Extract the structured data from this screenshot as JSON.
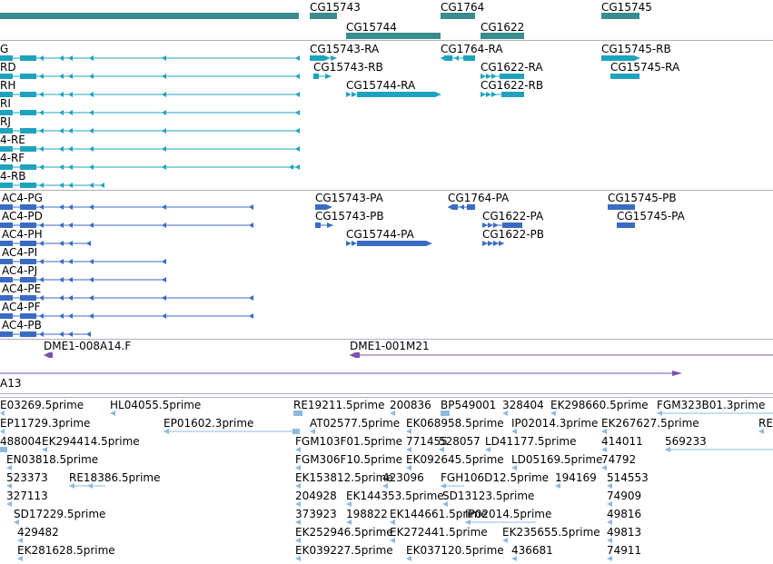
{
  "colors": {
    "gene": "#3a8c8f",
    "mrna": "#1ea3be",
    "protein": "#3a6bc4",
    "clone": "#7b4fb0",
    "est": "#8db9e0",
    "divider": "#b0b0c0"
  },
  "tracks": {
    "gene": {
      "labels": [
        {
          "id": "g1",
          "text": "CG15743"
        },
        {
          "id": "g2",
          "text": "CG1764"
        },
        {
          "id": "g3",
          "text": "CG15745"
        },
        {
          "id": "g4",
          "text": "CG15744"
        },
        {
          "id": "g5",
          "text": "CG1622"
        }
      ]
    },
    "mrna": {
      "labels": [
        {
          "id": "r1",
          "text": "G"
        },
        {
          "id": "r2",
          "text": "RD"
        },
        {
          "id": "r3",
          "text": "RH"
        },
        {
          "id": "r4",
          "text": "RI"
        },
        {
          "id": "r5",
          "text": "RJ"
        },
        {
          "id": "r6",
          "text": "4-RE"
        },
        {
          "id": "r7",
          "text": "4-RF"
        },
        {
          "id": "r8",
          "text": "4-RB"
        },
        {
          "id": "r9",
          "text": "CG15743-RA"
        },
        {
          "id": "r10",
          "text": "CG1764-RA"
        },
        {
          "id": "r11",
          "text": "CG15745-RB"
        },
        {
          "id": "r12",
          "text": "CG15743-RB"
        },
        {
          "id": "r13",
          "text": "CG1622-RA"
        },
        {
          "id": "r14",
          "text": "CG15745-RA"
        },
        {
          "id": "r15",
          "text": "CG15744-RA"
        },
        {
          "id": "r16",
          "text": "CG1622-RB"
        }
      ]
    },
    "protein": {
      "labels": [
        {
          "id": "p1",
          "text": "AC4-PG"
        },
        {
          "id": "p2",
          "text": "AC4-PD"
        },
        {
          "id": "p3",
          "text": "AC4-PH"
        },
        {
          "id": "p4",
          "text": "AC4-PI"
        },
        {
          "id": "p5",
          "text": "AC4-PJ"
        },
        {
          "id": "p6",
          "text": "AC4-PE"
        },
        {
          "id": "p7",
          "text": "AC4-PF"
        },
        {
          "id": "p8",
          "text": "AC4-PB"
        },
        {
          "id": "p9",
          "text": "CG15743-PA"
        },
        {
          "id": "p10",
          "text": "CG1764-PA"
        },
        {
          "id": "p11",
          "text": "CG15745-PB"
        },
        {
          "id": "p12",
          "text": "CG15743-PB"
        },
        {
          "id": "p13",
          "text": "CG1622-PA"
        },
        {
          "id": "p14",
          "text": "CG15745-PA"
        },
        {
          "id": "p15",
          "text": "CG15744-PA"
        },
        {
          "id": "p16",
          "text": "CG1622-PB"
        }
      ]
    },
    "clone": {
      "labels": [
        {
          "id": "c1",
          "text": "DME1-008A14.F"
        },
        {
          "id": "c2",
          "text": "DME1-001M21"
        },
        {
          "id": "c3",
          "text": "A13"
        }
      ]
    },
    "est": {
      "labels": [
        {
          "id": "e1",
          "text": "E03269.5prime"
        },
        {
          "id": "e2",
          "text": "HL04055.5prime"
        },
        {
          "id": "e3",
          "text": "RE19211.5prime"
        },
        {
          "id": "e4",
          "text": "200836"
        },
        {
          "id": "e5",
          "text": "BP549001"
        },
        {
          "id": "e6",
          "text": "328404"
        },
        {
          "id": "e7",
          "text": "EK298660.5prime"
        },
        {
          "id": "e8",
          "text": "FGM323B01.3prime"
        },
        {
          "id": "e9",
          "text": "EP11729.3prime"
        },
        {
          "id": "e10",
          "text": "EP01602.3prime"
        },
        {
          "id": "e11",
          "text": "AT02577.5prime"
        },
        {
          "id": "e12",
          "text": "EK068958.5prime"
        },
        {
          "id": "e13",
          "text": "IP02014.3prime"
        },
        {
          "id": "e14",
          "text": "EK267627.5prime"
        },
        {
          "id": "e15",
          "text": "RE"
        },
        {
          "id": "e16",
          "text": "488004"
        },
        {
          "id": "e17",
          "text": "EK294414.5prime"
        },
        {
          "id": "e18",
          "text": "FGM103F01.5prime"
        },
        {
          "id": "e19",
          "text": "771455"
        },
        {
          "id": "e20",
          "text": "528057"
        },
        {
          "id": "e21",
          "text": "LD41177.5prime"
        },
        {
          "id": "e22",
          "text": "414011"
        },
        {
          "id": "e23",
          "text": "569233"
        },
        {
          "id": "e24",
          "text": "EN03818.5prime"
        },
        {
          "id": "e25",
          "text": "FGM306F10.5prime"
        },
        {
          "id": "e26",
          "text": "EK092645.5prime"
        },
        {
          "id": "e27",
          "text": "LD05169.5prime"
        },
        {
          "id": "e28",
          "text": "74792"
        },
        {
          "id": "e29",
          "text": "523373"
        },
        {
          "id": "e30",
          "text": "RE18386.5prime"
        },
        {
          "id": "e31",
          "text": "EK153812.5prime"
        },
        {
          "id": "e32",
          "text": "423096"
        },
        {
          "id": "e33",
          "text": "FGH106D12.5prime"
        },
        {
          "id": "e34",
          "text": "194169"
        },
        {
          "id": "e35",
          "text": "514553"
        },
        {
          "id": "e36",
          "text": "327113"
        },
        {
          "id": "e37",
          "text": "204928"
        },
        {
          "id": "e38",
          "text": "EK144353.5prime"
        },
        {
          "id": "e39",
          "text": "SD13123.5prime"
        },
        {
          "id": "e40",
          "text": "74909"
        },
        {
          "id": "e41",
          "text": "SD17229.5prime"
        },
        {
          "id": "e42",
          "text": "373923"
        },
        {
          "id": "e43",
          "text": "198822"
        },
        {
          "id": "e44",
          "text": "EK144661.5prime"
        },
        {
          "id": "e45",
          "text": "IP02014.5prime"
        },
        {
          "id": "e46",
          "text": "49816"
        },
        {
          "id": "e47",
          "text": "429482"
        },
        {
          "id": "e48",
          "text": "EK252946.5prime"
        },
        {
          "id": "e49",
          "text": "EK272441.5prime"
        },
        {
          "id": "e50",
          "text": "EK235655.5prime"
        },
        {
          "id": "e51",
          "text": "49813"
        },
        {
          "id": "e52",
          "text": "EK281628.5prime"
        },
        {
          "id": "e53",
          "text": "EK039227.5prime"
        },
        {
          "id": "e54",
          "text": "EK037120.5prime"
        },
        {
          "id": "e55",
          "text": "436681"
        },
        {
          "id": "e56",
          "text": "74911"
        }
      ]
    }
  }
}
